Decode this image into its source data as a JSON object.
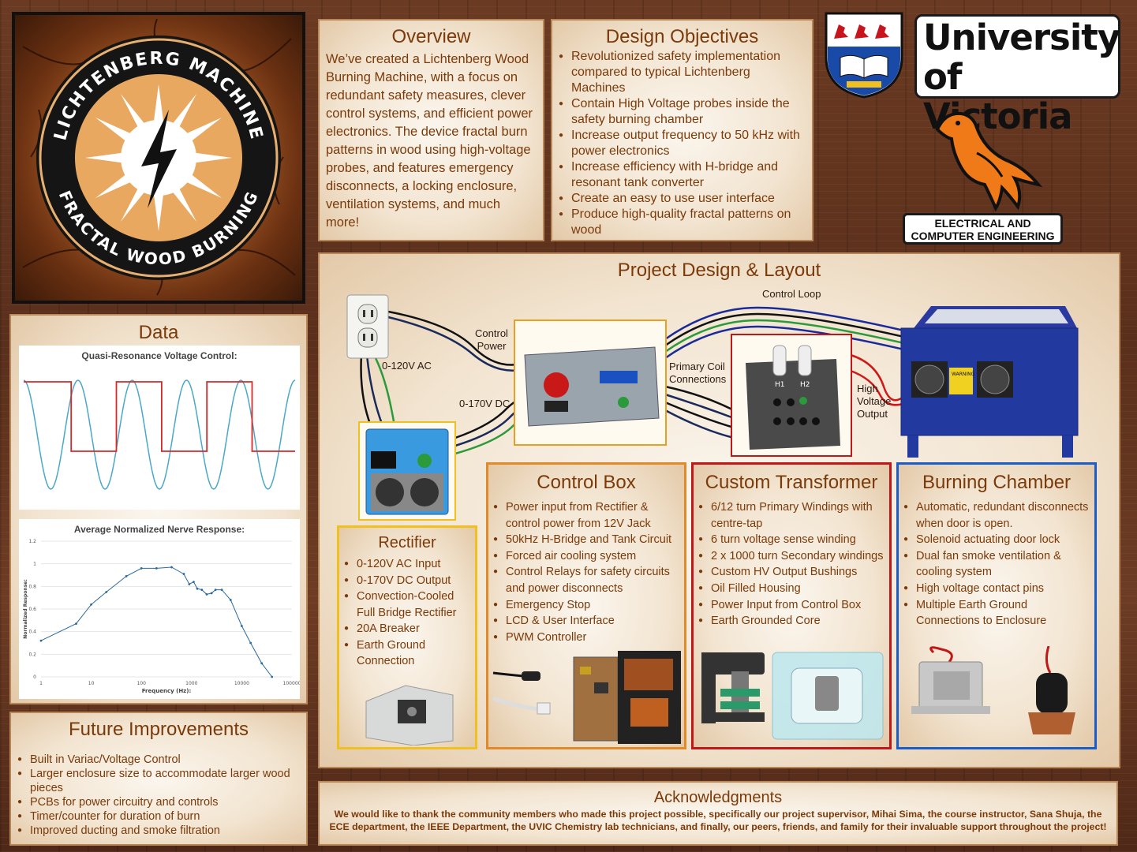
{
  "logo": {
    "ring_top": "LICHTENBERG MACHINE",
    "ring_bottom": "FRACTAL WOOD BURNING"
  },
  "overview": {
    "title": "Overview",
    "body": "We’ve created a Lichtenberg Wood Burning Machine, with a focus on redundant safety measures, clever control systems, and efficient power electronics. The device fractal burn patterns in wood using high-voltage probes, and features emergency disconnects, a locking enclosure, ventilation systems, and much more!"
  },
  "objectives": {
    "title": "Design Objectives",
    "items": [
      "Revolutionized safety implementation compared to typical Lichtenberg Machines",
      "Contain High Voltage probes inside the safety burning chamber",
      "Increase output frequency to 50 kHz with power electronics",
      "Increase efficiency with H-bridge and resonant tank converter",
      "Create an easy to use user interface",
      "Produce high-quality fractal patterns on wood"
    ]
  },
  "university": {
    "line1": "University",
    "line2": "of Victoria",
    "dept_line1": "ELECTRICAL AND",
    "dept_line2": "COMPUTER ENGINEERING"
  },
  "data_panel": {
    "title": "Data",
    "chart1_title": "Quasi-Resonance Voltage Control:",
    "chart2_title": "Average Normalized Nerve Response:"
  },
  "chart_data": [
    {
      "type": "line",
      "title": "Quasi-Resonance Voltage Control:",
      "xlabel": "",
      "ylabel": "",
      "series": [
        {
          "type": "sine",
          "color": "#4aa8c8",
          "cycles": 5,
          "values_description": ""
        },
        {
          "type": "square",
          "color": "#d42a2a",
          "x": [
            0,
            1.05,
            1.05,
            2.05,
            2.05,
            3.05,
            3.05,
            4.05,
            4.05,
            5.05,
            5.05,
            6
          ],
          "values": [
            1,
            1,
            -1,
            -1,
            1,
            1,
            -1,
            -1,
            1,
            1,
            -1,
            -1
          ]
        }
      ],
      "grid": false
    },
    {
      "type": "line",
      "title": "Average Normalized Nerve Response:",
      "xlabel": "Frequency (Hz):",
      "ylabel": "Normalized Response:",
      "xscale": "log",
      "xlim": [
        1,
        100000
      ],
      "ylim": [
        0,
        1.2
      ],
      "x_ticks": [
        "1",
        "10",
        "100",
        "1000",
        "10000",
        "100000"
      ],
      "y_ticks": [
        "0",
        "0.2",
        "0.4",
        "0.6",
        "0.8",
        "1",
        "1.2"
      ],
      "series": [
        {
          "x": [
            1,
            5,
            10,
            20,
            50,
            100,
            200,
            400,
            700,
            900,
            1100,
            1300,
            1600,
            2000,
            2500,
            3000,
            4000,
            6000,
            10000,
            15000,
            25000,
            40000
          ],
          "values": [
            0.32,
            0.47,
            0.64,
            0.75,
            0.89,
            0.96,
            0.96,
            0.97,
            0.91,
            0.82,
            0.84,
            0.78,
            0.77,
            0.73,
            0.74,
            0.77,
            0.77,
            0.68,
            0.45,
            0.3,
            0.12,
            0.0
          ],
          "color": "#2a6aa0"
        }
      ],
      "grid": true
    }
  ],
  "future": {
    "title": "Future Improvements",
    "items": [
      "Built in Variac/Voltage Control",
      "Larger enclosure size to accommodate larger wood pieces",
      "PCBs for power circuitry and controls",
      "Timer/counter for duration of burn",
      "Improved ducting and smoke filtration"
    ]
  },
  "design": {
    "title": "Project Design & Layout",
    "labels": {
      "control_loop": "Control Loop",
      "control_power_1": "Control",
      "control_power_2": "Power",
      "ac": "0-120V AC",
      "dc": "0-170V DC",
      "primary_1": "Primary Coil",
      "primary_2": "Connections",
      "hv_1": "High",
      "hv_2": "Voltage",
      "hv_3": "Output"
    },
    "transformer_h1": "H1",
    "transformer_h2": "H2"
  },
  "rectifier": {
    "title": "Rectifier",
    "items": [
      "0-120V AC Input",
      "0-170V DC Output",
      "Convection-Cooled Full Bridge Rectifier",
      "20A Breaker",
      "Earth Ground Connection"
    ]
  },
  "control_box": {
    "title": "Control Box",
    "items": [
      "Power input from Rectifier & control power from 12V Jack",
      "50kHz H-Bridge and Tank Circuit",
      "Forced air cooling system",
      "Control Relays for safety circuits and power disconnects",
      "Emergency Stop",
      "LCD & User Interface",
      "PWM Controller"
    ]
  },
  "transformer": {
    "title": "Custom Transformer",
    "items": [
      "6/12 turn Primary Windings with centre-tap",
      "6 turn voltage sense winding",
      "2 x 1000 turn Secondary windings",
      "Custom HV Output Bushings",
      "Oil Filled Housing",
      "Power Input from Control Box",
      "Earth Grounded Core"
    ]
  },
  "chamber": {
    "title": "Burning Chamber",
    "items": [
      "Automatic, redundant disconnects when door is open.",
      "Solenoid actuating door lock",
      "Dual fan smoke ventilation & cooling system",
      "High voltage contact pins",
      "Multiple Earth Ground Connections to Enclosure"
    ],
    "warning": "WARNING"
  },
  "ack": {
    "title": "Acknowledgments",
    "body": "We would like to thank the community members who made this project possible, specifically our project supervisor, Mihai Sima, the course instructor, Sana Shuja, the ECE department, the IEEE Department, the UVIC Chemistry lab technicians, and finally, our peers, friends, and family for their invaluable support throughout the project!"
  },
  "colors": {
    "title_brown": "#7a3a0a",
    "rectifier_border": "#f0c020",
    "control_border": "#e08a2a",
    "transformer_border": "#c01818",
    "chamber_border": "#1a5cc8"
  }
}
